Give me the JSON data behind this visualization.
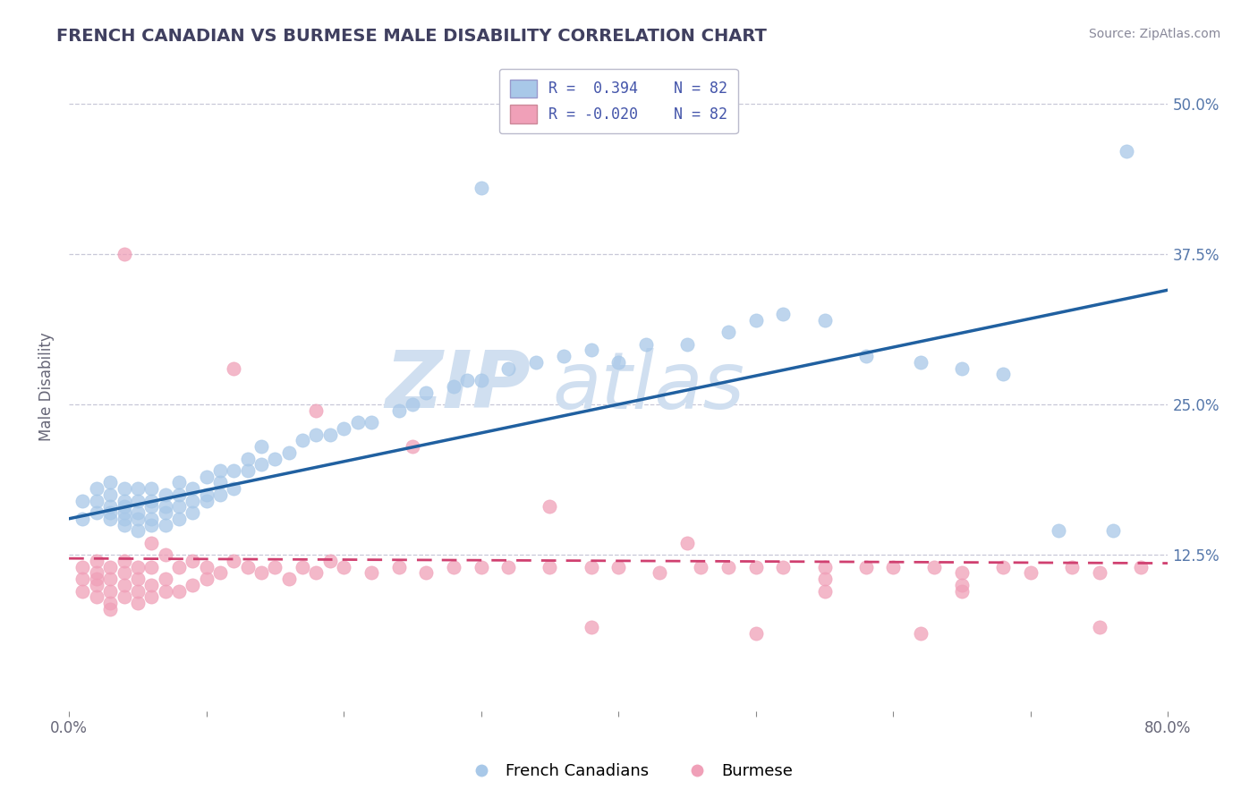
{
  "title": "FRENCH CANADIAN VS BURMESE MALE DISABILITY CORRELATION CHART",
  "source": "Source: ZipAtlas.com",
  "x_min": 0.0,
  "x_max": 0.8,
  "y_min": -0.005,
  "y_max": 0.535,
  "R_blue": 0.394,
  "R_pink": -0.02,
  "N_blue": 82,
  "N_pink": 82,
  "color_blue": "#A8C8E8",
  "color_pink": "#F0A0B8",
  "line_blue": "#2060A0",
  "line_pink": "#D04070",
  "background": "#ffffff",
  "grid_color": "#c8c8d8",
  "title_color": "#404060",
  "watermark_color": "#d0dff0",
  "legend_label_blue": "French Canadians",
  "legend_label_pink": "Burmese",
  "blue_trend_x0": 0.0,
  "blue_trend_y0": 0.155,
  "blue_trend_x1": 0.8,
  "blue_trend_y1": 0.345,
  "pink_trend_x0": 0.0,
  "pink_trend_y0": 0.122,
  "pink_trend_x1": 0.8,
  "pink_trend_y1": 0.118,
  "blue_x": [
    0.01,
    0.01,
    0.02,
    0.02,
    0.02,
    0.03,
    0.03,
    0.03,
    0.03,
    0.03,
    0.04,
    0.04,
    0.04,
    0.04,
    0.04,
    0.04,
    0.05,
    0.05,
    0.05,
    0.05,
    0.05,
    0.06,
    0.06,
    0.06,
    0.06,
    0.06,
    0.07,
    0.07,
    0.07,
    0.07,
    0.08,
    0.08,
    0.08,
    0.08,
    0.09,
    0.09,
    0.09,
    0.1,
    0.1,
    0.1,
    0.11,
    0.11,
    0.11,
    0.12,
    0.12,
    0.13,
    0.13,
    0.14,
    0.14,
    0.15,
    0.16,
    0.17,
    0.18,
    0.19,
    0.2,
    0.21,
    0.22,
    0.24,
    0.25,
    0.26,
    0.28,
    0.29,
    0.3,
    0.32,
    0.34,
    0.36,
    0.38,
    0.4,
    0.42,
    0.45,
    0.48,
    0.5,
    0.52,
    0.55,
    0.58,
    0.62,
    0.65,
    0.68,
    0.72,
    0.76,
    0.3,
    0.77
  ],
  "blue_y": [
    0.17,
    0.155,
    0.16,
    0.17,
    0.18,
    0.155,
    0.16,
    0.165,
    0.175,
    0.185,
    0.15,
    0.155,
    0.16,
    0.165,
    0.17,
    0.18,
    0.145,
    0.155,
    0.16,
    0.17,
    0.18,
    0.15,
    0.155,
    0.165,
    0.17,
    0.18,
    0.15,
    0.16,
    0.165,
    0.175,
    0.155,
    0.165,
    0.175,
    0.185,
    0.16,
    0.17,
    0.18,
    0.17,
    0.175,
    0.19,
    0.175,
    0.185,
    0.195,
    0.18,
    0.195,
    0.195,
    0.205,
    0.2,
    0.215,
    0.205,
    0.21,
    0.22,
    0.225,
    0.225,
    0.23,
    0.235,
    0.235,
    0.245,
    0.25,
    0.26,
    0.265,
    0.27,
    0.27,
    0.28,
    0.285,
    0.29,
    0.295,
    0.285,
    0.3,
    0.3,
    0.31,
    0.32,
    0.325,
    0.32,
    0.29,
    0.285,
    0.28,
    0.275,
    0.145,
    0.145,
    0.43,
    0.46
  ],
  "pink_x": [
    0.01,
    0.01,
    0.01,
    0.02,
    0.02,
    0.02,
    0.02,
    0.02,
    0.03,
    0.03,
    0.03,
    0.03,
    0.03,
    0.04,
    0.04,
    0.04,
    0.04,
    0.05,
    0.05,
    0.05,
    0.05,
    0.06,
    0.06,
    0.06,
    0.07,
    0.07,
    0.07,
    0.08,
    0.08,
    0.09,
    0.09,
    0.1,
    0.1,
    0.11,
    0.12,
    0.13,
    0.14,
    0.15,
    0.16,
    0.17,
    0.18,
    0.19,
    0.2,
    0.22,
    0.24,
    0.26,
    0.28,
    0.3,
    0.32,
    0.35,
    0.38,
    0.4,
    0.43,
    0.46,
    0.48,
    0.5,
    0.52,
    0.55,
    0.58,
    0.6,
    0.63,
    0.65,
    0.68,
    0.7,
    0.73,
    0.75,
    0.78,
    0.12,
    0.18,
    0.25,
    0.35,
    0.45,
    0.55,
    0.65,
    0.55,
    0.65,
    0.5,
    0.62,
    0.38,
    0.75,
    0.04,
    0.06
  ],
  "pink_y": [
    0.115,
    0.105,
    0.095,
    0.1,
    0.105,
    0.11,
    0.12,
    0.09,
    0.085,
    0.095,
    0.105,
    0.115,
    0.08,
    0.09,
    0.1,
    0.11,
    0.12,
    0.085,
    0.095,
    0.105,
    0.115,
    0.09,
    0.1,
    0.115,
    0.095,
    0.105,
    0.125,
    0.095,
    0.115,
    0.1,
    0.12,
    0.105,
    0.115,
    0.11,
    0.12,
    0.115,
    0.11,
    0.115,
    0.105,
    0.115,
    0.11,
    0.12,
    0.115,
    0.11,
    0.115,
    0.11,
    0.115,
    0.115,
    0.115,
    0.115,
    0.115,
    0.115,
    0.11,
    0.115,
    0.115,
    0.115,
    0.115,
    0.115,
    0.115,
    0.115,
    0.115,
    0.11,
    0.115,
    0.11,
    0.115,
    0.11,
    0.115,
    0.28,
    0.245,
    0.215,
    0.165,
    0.135,
    0.095,
    0.095,
    0.105,
    0.1,
    0.06,
    0.06,
    0.065,
    0.065,
    0.375,
    0.135
  ]
}
